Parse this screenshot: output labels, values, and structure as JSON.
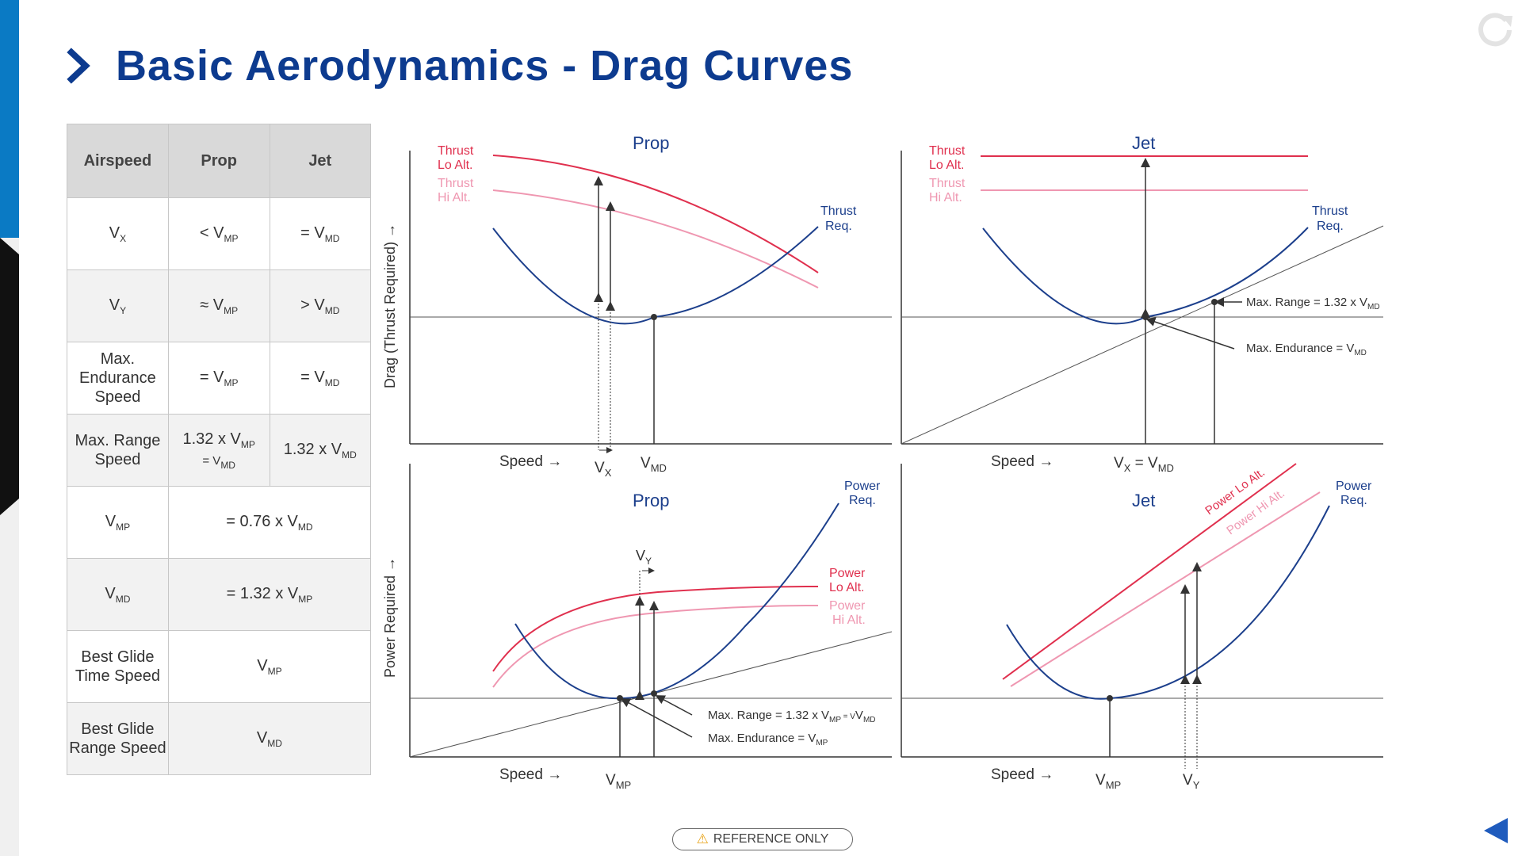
{
  "header": {
    "title": "Basic Aerodynamics - Drag Curves"
  },
  "table": {
    "headers": [
      "Airspeed",
      "Prop",
      "Jet"
    ],
    "rows": [
      {
        "label": "V",
        "label_sub": "X",
        "prop": "< V",
        "prop_sub": "MP",
        "jet": "= V",
        "jet_sub": "MD"
      },
      {
        "label": "V",
        "label_sub": "Y",
        "prop": "≈ V",
        "prop_sub": "MP",
        "jet": "> V",
        "jet_sub": "MD"
      },
      {
        "label": "Max. Endurance Speed",
        "prop": "= V",
        "prop_sub": "MP",
        "jet": "= V",
        "jet_sub": "MD"
      },
      {
        "label": "Max. Range Speed",
        "prop": "1.32 x V",
        "prop_sub": "MP",
        "prop_line2": "= V",
        "prop_line2_sub": "MD",
        "jet": "1.32 x V",
        "jet_sub": "MD"
      },
      {
        "label": "V",
        "label_sub": "MP",
        "both": "= 0.76 x V",
        "both_sub": "MD"
      },
      {
        "label": "V",
        "label_sub": "MD",
        "both": "= 1.32 x V",
        "both_sub": "MP"
      },
      {
        "label": "Best Glide Time Speed",
        "both": "V",
        "both_sub": "MP"
      },
      {
        "label": "Best Glide Range Speed",
        "both": "V",
        "both_sub": "MD"
      }
    ]
  },
  "charts": {
    "drag_y_axis_label": "Drag (Thrust Required) →",
    "power_y_axis_label": "Power Required →",
    "speed_label": "Speed →",
    "prop_title": "Prop",
    "jet_title": "Jet",
    "thrust_lo_1": "Thrust",
    "thrust_lo_2": "Lo Alt.",
    "thrust_hi_1": "Thrust",
    "thrust_hi_2": "Hi Alt.",
    "thrust_req_1": "Thrust",
    "thrust_req_2": "Req.",
    "power_req_1": "Power",
    "power_req_2": "Req.",
    "power_lo_1": "Power",
    "power_lo_2": "Lo Alt.",
    "power_hi_1": "Power",
    "power_hi_2": "Hi Alt.",
    "power_lo_alt": "Power Lo Alt.",
    "power_hi_alt": "Power Hi Alt.",
    "v": "V",
    "sub_x": "X",
    "sub_y": "Y",
    "sub_md": "MD",
    "sub_mp": "MP",
    "vx_eq": "V",
    "eq_sign": " = V",
    "max_range_jet": "Max. Range = 1.32 x V",
    "max_endurance_jet": "Max. Endurance = V",
    "max_range_prop": "Max. Range = 1.32 x V",
    "max_range_prop_mid": " = V",
    "max_endurance_prop": "Max. Endurance = V"
  },
  "footer": {
    "reference": "REFERENCE ONLY",
    "warning_icon": "warning-triangle-icon"
  },
  "colors": {
    "title": "#0d3b8f",
    "curve_blue": "#1c3f8c",
    "thrust_lo": "#e0304e",
    "thrust_hi": "#ef97b1"
  }
}
